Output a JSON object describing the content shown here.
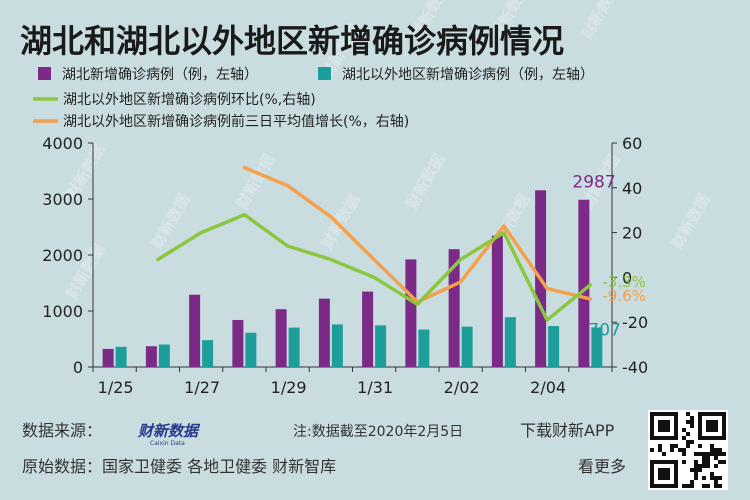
{
  "chart_data": {
    "type": "bar",
    "title": "湖北和湖北以外地区新增确诊病例情况",
    "categories": [
      "1/25",
      "1/26",
      "1/27",
      "1/28",
      "1/29",
      "1/30",
      "1/31",
      "2/01",
      "2/02",
      "2/03",
      "2/04",
      "2/05"
    ],
    "x_tick_labels": [
      "1/25",
      "1/27",
      "1/29",
      "1/31",
      "2/02",
      "2/04"
    ],
    "left_axis": {
      "ylim": [
        0,
        4000
      ],
      "ticks": [
        0,
        1000,
        2000,
        3000,
        4000
      ]
    },
    "right_axis": {
      "ylim": [
        -40,
        60
      ],
      "ticks": [
        -40,
        -20,
        0,
        20,
        40,
        60
      ]
    },
    "series": [
      {
        "name": "湖北新增确诊病例（例，左轴）",
        "kind": "bar",
        "axis": "left",
        "color": "#7b2a87",
        "values": [
          323,
          371,
          1291,
          840,
          1032,
          1220,
          1347,
          1921,
          2103,
          2345,
          3156,
          2987
        ]
      },
      {
        "name": "湖北以外地区新增确诊病例（例，左轴）",
        "kind": "bar",
        "axis": "left",
        "color": "#1e9e9b",
        "values": [
          361,
          401,
          480,
          612,
          703,
          761,
          744,
          669,
          721,
          890,
          731,
          707
        ]
      },
      {
        "name": "湖北以外地区新增确诊病例环比(%,右轴)",
        "kind": "line",
        "axis": "right",
        "color": "#8cc63f",
        "values": [
          null,
          8,
          20,
          28,
          14,
          8,
          0,
          -12,
          8,
          20,
          -19,
          -3.3
        ]
      },
      {
        "name": "湖北以外地区新增确诊病例前三日平均值增长(%，右轴)",
        "kind": "line",
        "axis": "right",
        "color": "#f5a04a",
        "values": [
          null,
          null,
          null,
          49,
          41,
          27,
          8,
          -11,
          -2,
          23,
          -5,
          -9.6
        ]
      }
    ],
    "annotations": [
      {
        "text": "2987",
        "color": "#7b2a87"
      },
      {
        "text": "707",
        "color": "#1e9e9b"
      },
      {
        "text": "-3.3%",
        "color": "#8cc63f"
      },
      {
        "text": "-9.6%",
        "color": "#f5a04a"
      }
    ],
    "grid": false,
    "legend_placement": "top"
  },
  "footer": {
    "source_label": "数据来源：",
    "brand": "财新数据",
    "brand_sub": "Caixin Data",
    "note": "注:数据截至2020年2月5日",
    "download": "下载财新APP",
    "origin": "原始数据：国家卫健委 各地卫健委 财新智库",
    "more": "看更多"
  },
  "watermark": "财新数据"
}
